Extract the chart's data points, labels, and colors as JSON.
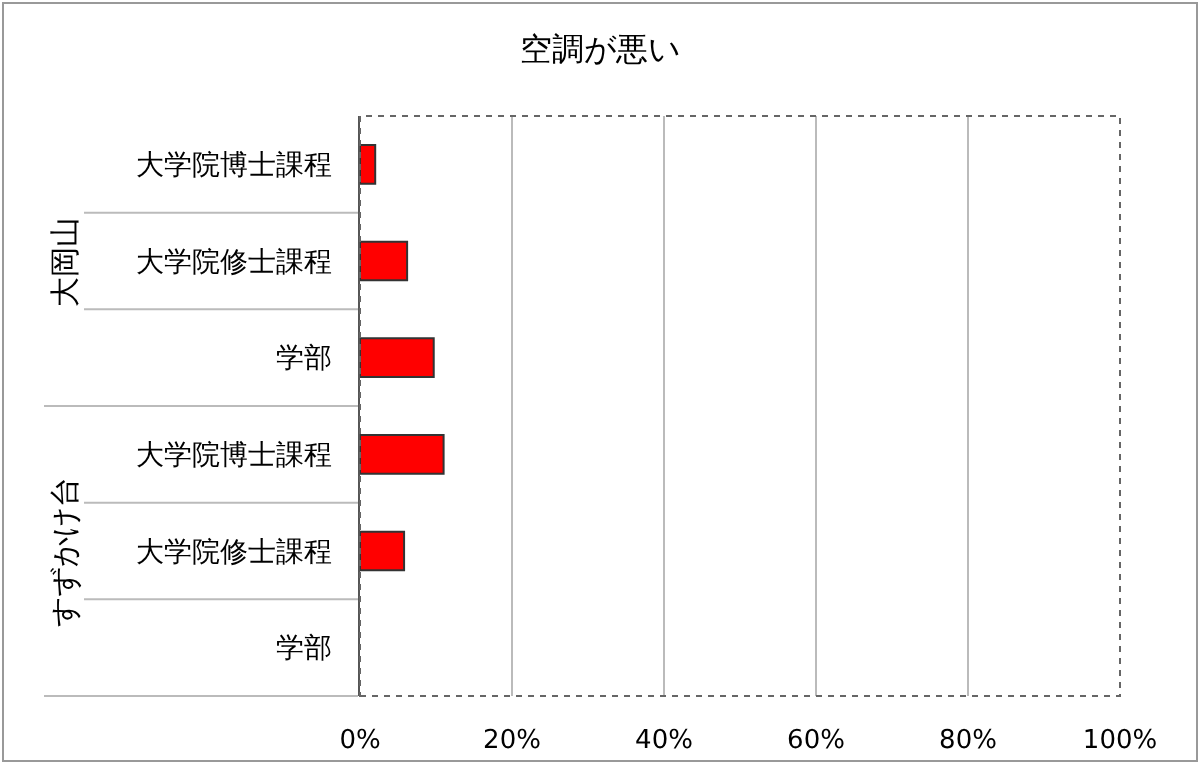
{
  "chart_data": {
    "type": "bar",
    "orientation": "horizontal",
    "title": "空調が悪い",
    "categories": [
      "大学院博士課程",
      "大学院修士課程",
      "学部",
      "大学院博士課程",
      "大学院修士課程",
      "学部"
    ],
    "values": [
      2,
      6.2,
      9.7,
      11,
      5.8,
      0
    ],
    "color": "#ff0000",
    "xlim": [
      0,
      100
    ],
    "xticks": [
      {
        "value": 0,
        "label": "0%"
      },
      {
        "value": 20,
        "label": "20%"
      },
      {
        "value": 40,
        "label": "40%"
      },
      {
        "value": 60,
        "label": "60%"
      },
      {
        "value": 80,
        "label": "80%"
      },
      {
        "value": 100,
        "label": "100%"
      }
    ],
    "annotations": [
      "大岡山",
      "すずかけ台"
    ],
    "grid": "x",
    "legend": false
  }
}
